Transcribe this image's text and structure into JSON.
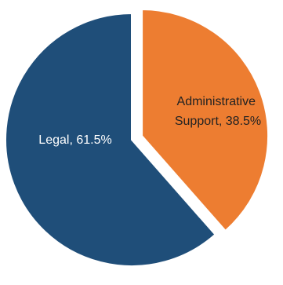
{
  "chart_data": {
    "type": "pie",
    "title": "",
    "labels": [
      "Legal",
      "Administrative Support"
    ],
    "values": [
      61.5,
      38.5
    ],
    "unit": "%",
    "colors": [
      "#1f4e79",
      "#ed7d31"
    ],
    "exploded": [
      false,
      true
    ],
    "legend": "none",
    "data_labels": {
      "legal": [
        "Legal, 61.5%"
      ],
      "admin": [
        "Administrative",
        "Support, 38.5%"
      ]
    },
    "label_color": "#ffffff",
    "label_color_alt": "#222222"
  }
}
